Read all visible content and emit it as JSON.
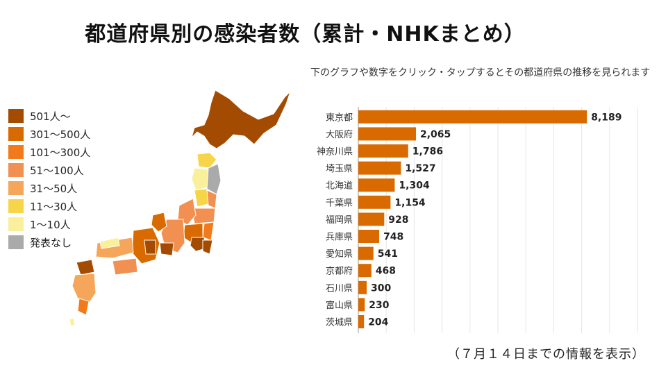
{
  "title": "都道府県別の感染者数（累計・NHKまとめ）",
  "note": "下のグラフや数字をクリック・タップするとその都道府県の推移を見られます",
  "footer": "（７月１４日までの情報を表示）",
  "legend": [
    {
      "label": "501人〜",
      "color": "#a34b00"
    },
    {
      "label": "301〜500人",
      "color": "#d96a00"
    },
    {
      "label": "101〜300人",
      "color": "#f27a1a"
    },
    {
      "label": "51〜100人",
      "color": "#f29052"
    },
    {
      "label": "31〜50人",
      "color": "#f5a65a"
    },
    {
      "label": "11〜30人",
      "color": "#f7d54a"
    },
    {
      "label": "1〜10人",
      "color": "#faf09c"
    },
    {
      "label": "発表なし",
      "color": "#aaaaaa"
    }
  ],
  "chart_data": {
    "type": "bar",
    "orientation": "horizontal",
    "categories": [
      "東京都",
      "大阪府",
      "神奈川県",
      "埼玉県",
      "北海道",
      "千葉県",
      "福岡県",
      "兵庫県",
      "愛知県",
      "京都府",
      "石川県",
      "富山県",
      "茨城県"
    ],
    "values": [
      8189,
      2065,
      1786,
      1527,
      1304,
      1154,
      928,
      748,
      541,
      468,
      300,
      230,
      204
    ],
    "value_labels": [
      "8,189",
      "2,065",
      "1,786",
      "1,527",
      "1,304",
      "1,154",
      "928",
      "748",
      "541",
      "468",
      "300",
      "230",
      "204"
    ],
    "xlim": [
      0,
      10000
    ],
    "bar_color": "#d96a00",
    "grid": true
  }
}
